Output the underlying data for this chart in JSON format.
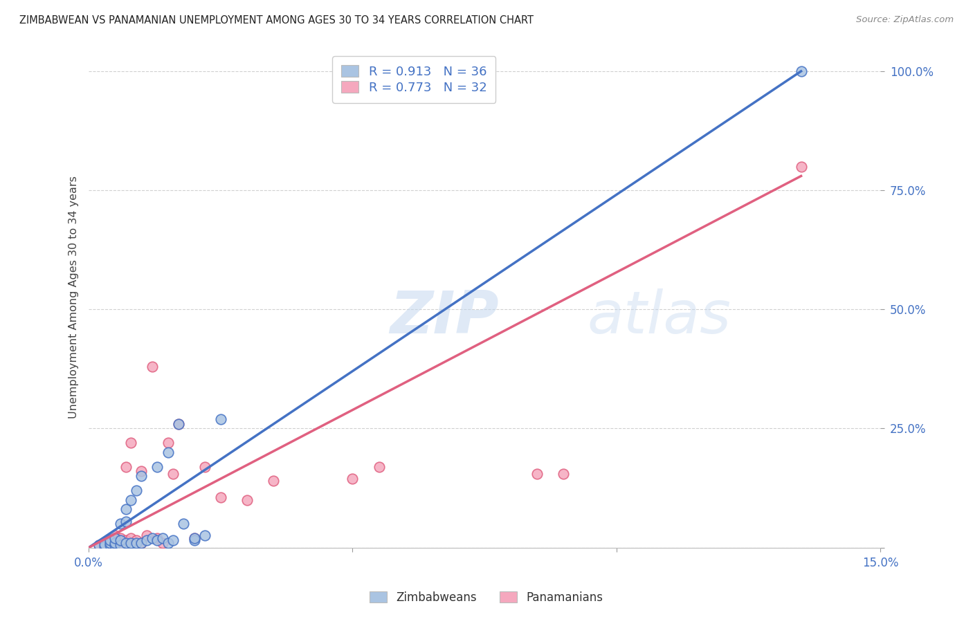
{
  "title": "ZIMBABWEAN VS PANAMANIAN UNEMPLOYMENT AMONG AGES 30 TO 34 YEARS CORRELATION CHART",
  "source": "Source: ZipAtlas.com",
  "ylabel": "Unemployment Among Ages 30 to 34 years",
  "xlim": [
    0.0,
    15.0
  ],
  "ylim": [
    0.0,
    105.0
  ],
  "xticks": [
    0.0,
    5.0,
    10.0,
    15.0
  ],
  "xticklabels": [
    "0.0%",
    "",
    "",
    "15.0%"
  ],
  "yticks": [
    0.0,
    25.0,
    50.0,
    75.0,
    100.0
  ],
  "yticklabels": [
    "",
    "25.0%",
    "50.0%",
    "75.0%",
    "100.0%"
  ],
  "zim_color": "#aac4e2",
  "pan_color": "#f5a8be",
  "zim_line_color": "#4472c4",
  "pan_line_color": "#e06080",
  "zim_R": 0.913,
  "zim_N": 36,
  "pan_R": 0.773,
  "pan_N": 32,
  "legend_label_zim": "Zimbabweans",
  "legend_label_pan": "Panamanians",
  "watermark_zip": "ZIP",
  "watermark_atlas": "atlas",
  "background_color": "#ffffff",
  "grid_color": "#d0d0d0",
  "tick_color": "#4472c4",
  "zim_scatter_x": [
    0.2,
    0.3,
    0.3,
    0.4,
    0.4,
    0.4,
    0.5,
    0.5,
    0.5,
    0.6,
    0.6,
    0.6,
    0.7,
    0.7,
    0.7,
    0.8,
    0.8,
    0.9,
    0.9,
    1.0,
    1.0,
    1.1,
    1.2,
    1.3,
    1.3,
    1.4,
    1.5,
    1.5,
    1.6,
    1.7,
    1.8,
    2.0,
    2.0,
    2.2,
    2.5,
    13.5
  ],
  "zim_scatter_y": [
    0.5,
    0.3,
    0.7,
    0.5,
    1.0,
    1.5,
    0.5,
    1.0,
    2.0,
    0.5,
    1.5,
    5.0,
    1.0,
    5.5,
    8.0,
    1.0,
    10.0,
    1.0,
    12.0,
    1.0,
    15.0,
    1.5,
    2.0,
    1.5,
    17.0,
    2.0,
    1.0,
    20.0,
    1.5,
    26.0,
    5.0,
    1.5,
    2.0,
    2.5,
    27.0,
    100.0
  ],
  "pan_scatter_x": [
    0.2,
    0.3,
    0.4,
    0.4,
    0.5,
    0.5,
    0.6,
    0.6,
    0.7,
    0.7,
    0.8,
    0.8,
    0.9,
    1.0,
    1.0,
    1.1,
    1.2,
    1.3,
    1.4,
    1.5,
    1.6,
    1.7,
    2.0,
    2.2,
    2.5,
    3.0,
    3.5,
    5.0,
    5.5,
    8.5,
    9.0,
    13.5
  ],
  "pan_scatter_y": [
    0.5,
    1.0,
    0.5,
    1.5,
    1.0,
    2.5,
    0.5,
    2.0,
    1.5,
    17.0,
    2.0,
    22.0,
    1.5,
    1.0,
    16.0,
    2.5,
    38.0,
    2.0,
    1.0,
    22.0,
    15.5,
    26.0,
    2.0,
    17.0,
    10.5,
    10.0,
    14.0,
    14.5,
    17.0,
    15.5,
    15.5,
    80.0
  ],
  "zim_regline_x": [
    0.0,
    13.5
  ],
  "zim_regline_y": [
    0.0,
    100.0
  ],
  "pan_regline_x": [
    0.0,
    13.5
  ],
  "pan_regline_y": [
    0.0,
    78.0
  ]
}
